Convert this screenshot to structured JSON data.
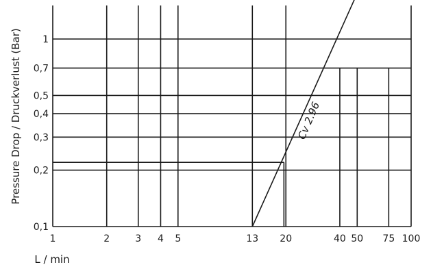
{
  "chart_data": {
    "type": "line",
    "xscale": "log",
    "yscale": "log",
    "xlabel": "L / min",
    "ylabel": "Pressure Drop / Druckverlust (Bar)",
    "xlim": [
      1,
      100
    ],
    "ylim": [
      0.1,
      2
    ],
    "x_ticks": [
      1,
      2,
      3,
      4,
      5,
      13,
      20,
      40,
      50,
      75,
      100
    ],
    "x_tick_labels": [
      "1",
      "2",
      "3",
      "4",
      "5",
      "13",
      "20",
      "40",
      "50",
      "75",
      "100"
    ],
    "y_ticks": [
      0.1,
      0.2,
      0.3,
      0.4,
      0.5,
      0.7,
      1
    ],
    "y_tick_labels": [
      "0,1",
      "0,2",
      "0,3",
      "0,4",
      "0,5",
      "0,7",
      "1"
    ],
    "grid": true,
    "series": [
      {
        "name": "Cv 2.96",
        "x": [
          13,
          48.5
        ],
        "y": [
          0.1,
          2
        ]
      }
    ],
    "reference_lines": [
      {
        "x": [
          1,
          19.5,
          19.5
        ],
        "y": [
          0.22,
          0.22,
          0.1
        ]
      },
      {
        "x": [
          40,
          75,
          75
        ],
        "y": [
          0.7,
          0.7,
          0.1
        ]
      }
    ],
    "annotations": [
      {
        "text": "Cv 2.96",
        "x": 30,
        "y": 0.42
      }
    ]
  }
}
